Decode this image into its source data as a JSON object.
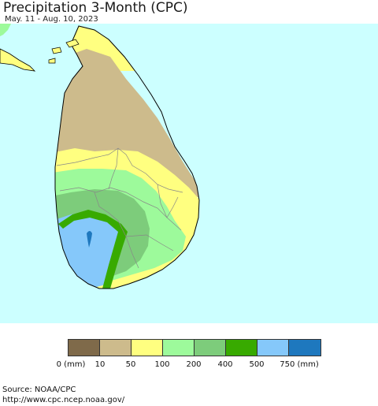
{
  "title": "Precipitation 3-Month (CPC)",
  "subtitle": "May. 11 - Aug. 10, 2023",
  "colors": {
    "ocean": "#ccffff",
    "border": "#000000",
    "district_lines": "#888888"
  },
  "legend": {
    "colors": [
      "#7f6a4a",
      "#cdbb8c",
      "#ffff80",
      "#9dfa9b",
      "#7dcc7b",
      "#38aa00",
      "#85c8fa",
      "#1e78be"
    ],
    "labels": [
      "0 (mm)",
      "10",
      "50",
      "100",
      "200",
      "400",
      "500",
      "750 (mm)"
    ]
  },
  "source": {
    "line1": "Source: NOAA/CPC",
    "line2": "http://www.cpc.ncep.noaa.gov/"
  }
}
